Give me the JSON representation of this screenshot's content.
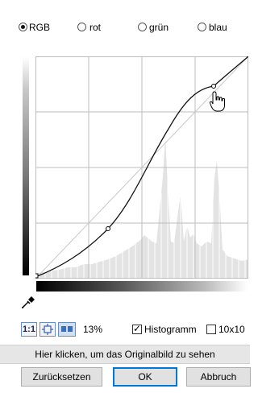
{
  "channels": [
    {
      "label": "RGB",
      "checked": true
    },
    {
      "label": "rot",
      "checked": false
    },
    {
      "label": "grün",
      "checked": false
    },
    {
      "label": "blau",
      "checked": false
    }
  ],
  "toolbar": {
    "zoom_1to1": "1:1",
    "zoom_percent": "13%",
    "histogram_label": "Histogramm",
    "histogram_checked": true,
    "grid_label": "10x10",
    "grid_checked": false
  },
  "info_bar": "Hier klicken, um das Originalbild zu sehen",
  "buttons": {
    "reset": "Zurücksetzen",
    "ok": "OK",
    "cancel": "Abbruch"
  },
  "icons": {
    "eyedropper": "eyedropper-icon",
    "hand_cursor": "hand-cursor-icon"
  }
}
